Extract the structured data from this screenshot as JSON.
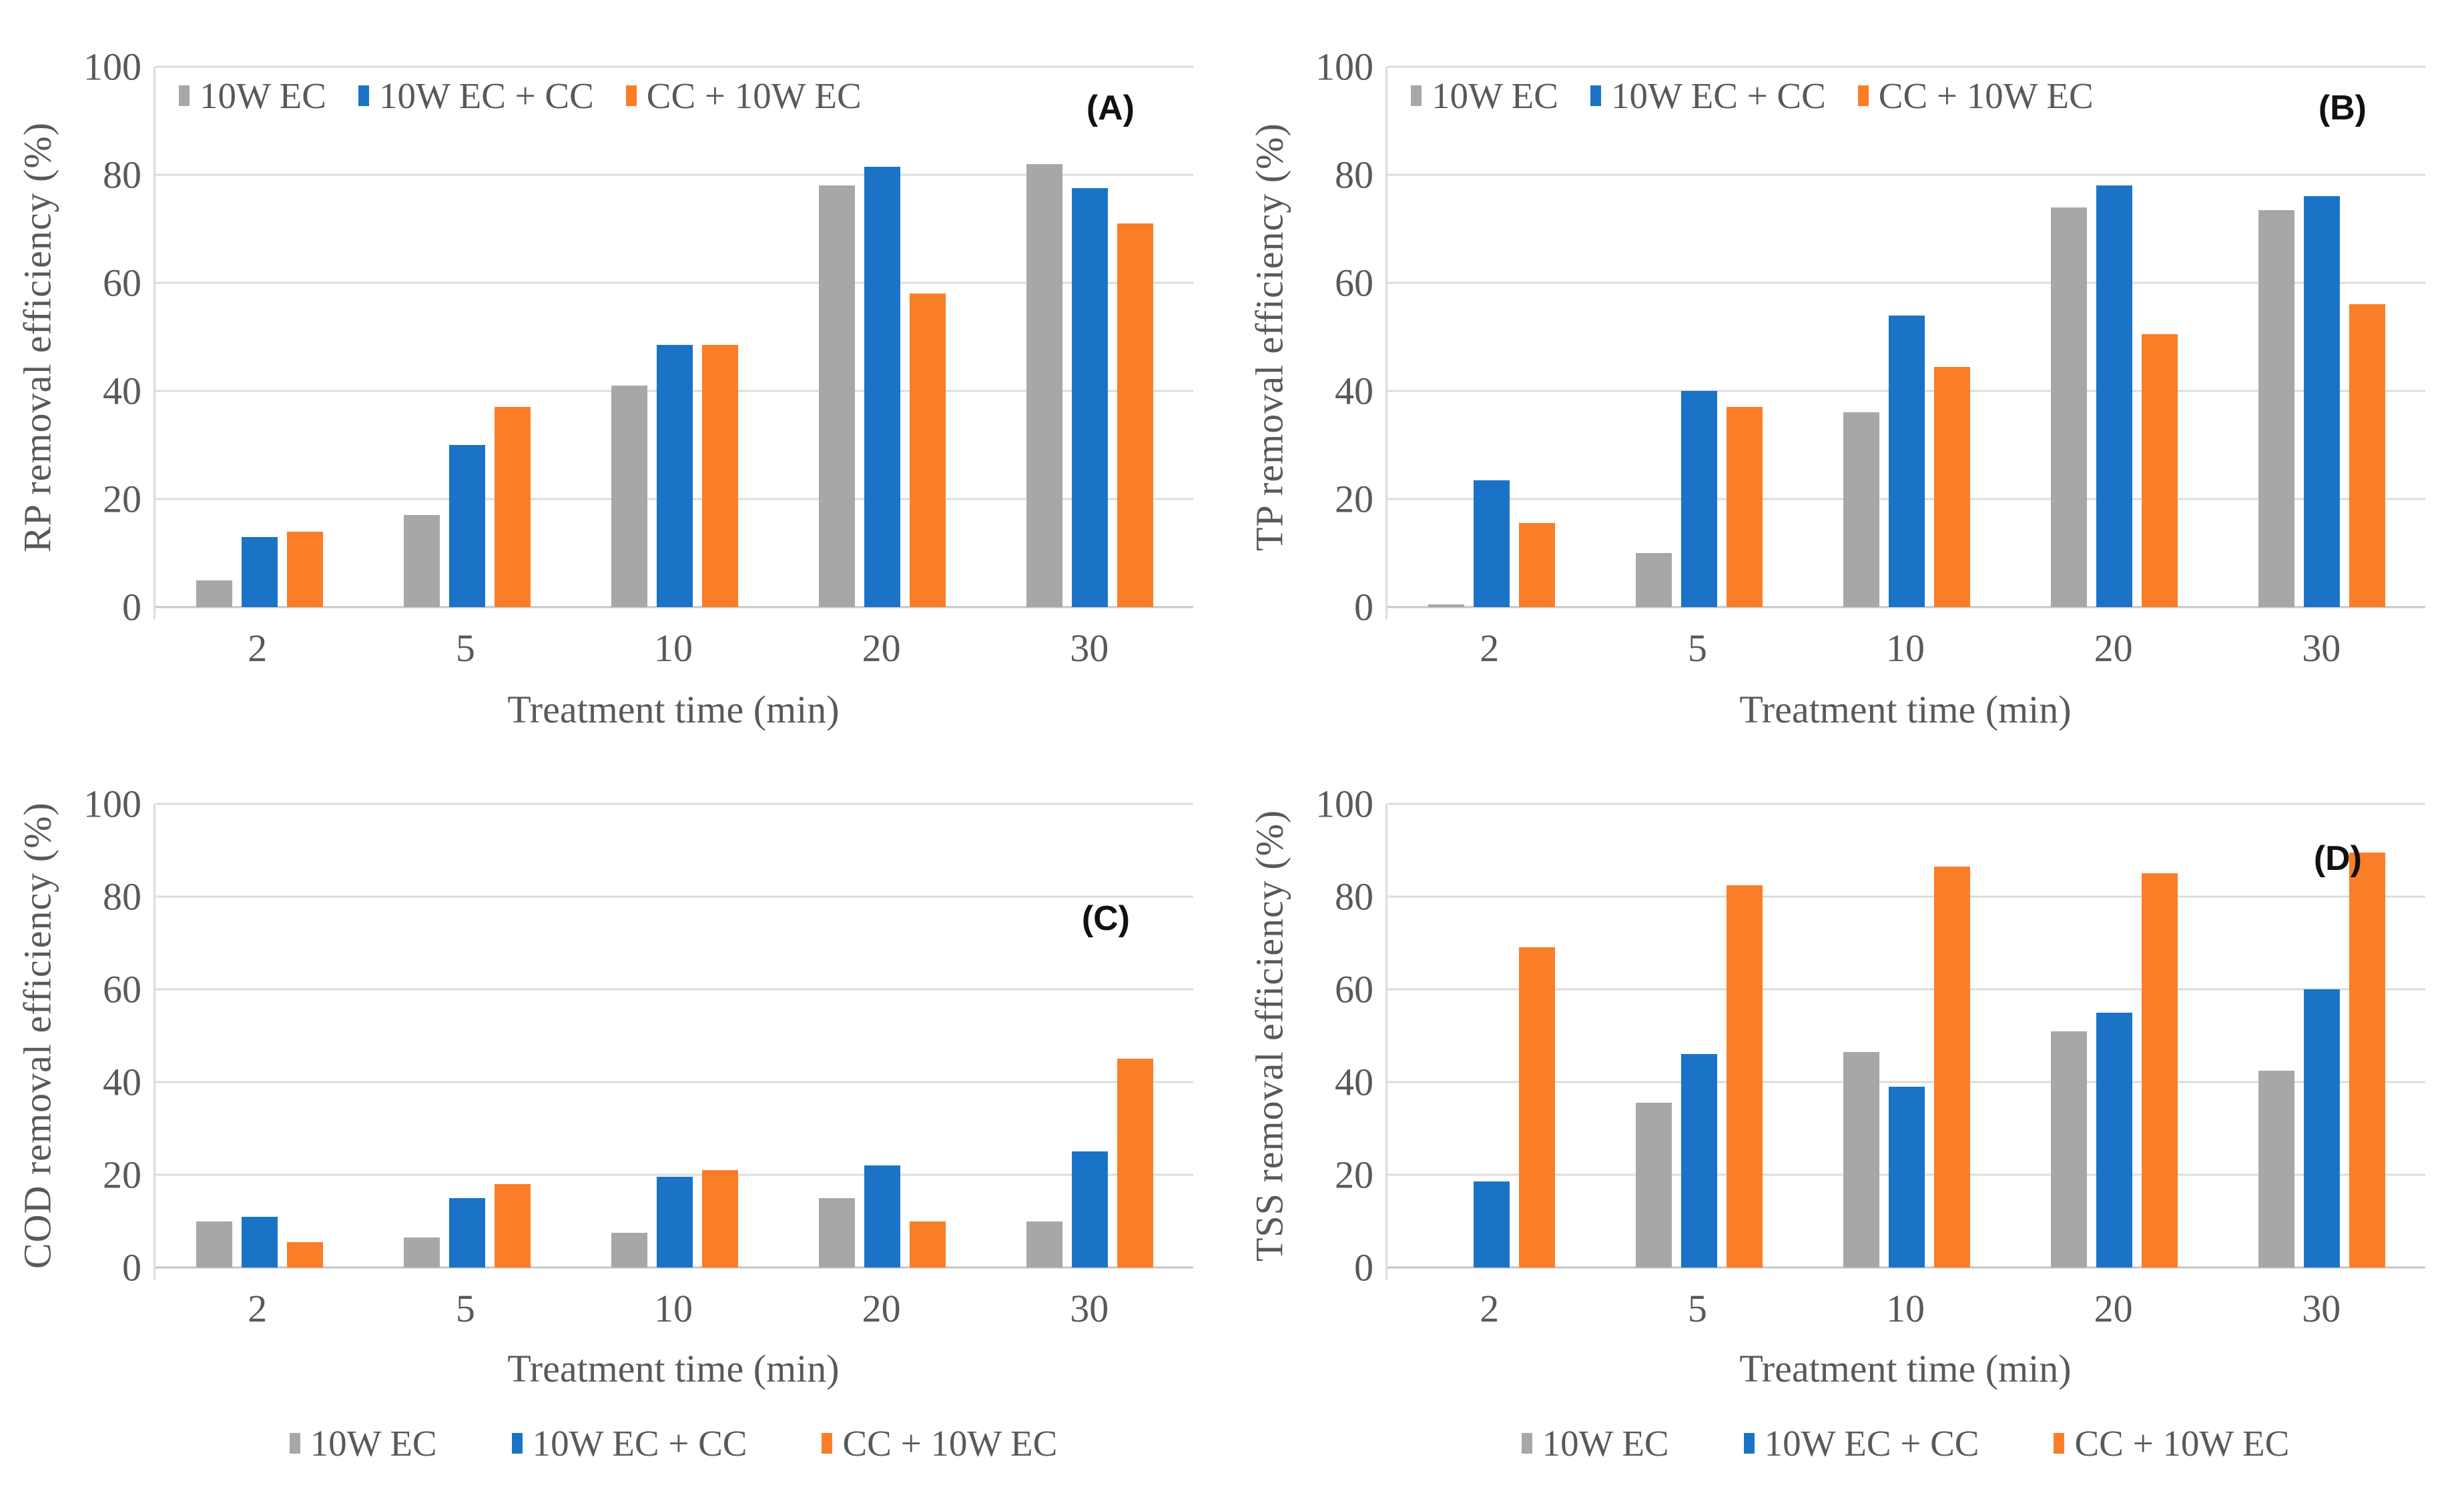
{
  "colors": {
    "gray": "#A7A7A7",
    "blue": "#1B73C7",
    "orange": "#FA7D27",
    "gridline": "#DCDCDC",
    "baseline": "#C6C6C6",
    "axis_text": "#595959",
    "panel_letter": "#111111"
  },
  "chart_data": [
    {
      "type": "bar",
      "panel": "(A)",
      "xlabel": "Treatment time (min)",
      "ylabel": "RP removal efficiency (%)",
      "ylim": [
        0,
        100
      ],
      "yticks": [
        0,
        20,
        40,
        60,
        80,
        100
      ],
      "grid": "horizontal",
      "legend_position": "top-inside",
      "categories": [
        "2",
        "5",
        "10",
        "20",
        "30"
      ],
      "series": [
        {
          "name": "10W EC",
          "color_key": "gray",
          "values": [
            5,
            17,
            41,
            78,
            82
          ]
        },
        {
          "name": "10W EC + CC",
          "color_key": "blue",
          "values": [
            13,
            30,
            48.5,
            81.5,
            77.5
          ]
        },
        {
          "name": "CC + 10W EC",
          "color_key": "orange",
          "values": [
            14,
            37,
            48.5,
            58,
            71
          ]
        }
      ]
    },
    {
      "type": "bar",
      "panel": "(B)",
      "xlabel": "Treatment time (min)",
      "ylabel": "TP removal efficiency (%)",
      "ylim": [
        0,
        100
      ],
      "yticks": [
        0,
        20,
        40,
        60,
        80,
        100
      ],
      "grid": "horizontal",
      "legend_position": "top-inside",
      "categories": [
        "2",
        "5",
        "10",
        "20",
        "30"
      ],
      "series": [
        {
          "name": "10W EC",
          "color_key": "gray",
          "values": [
            0.5,
            10,
            36,
            74,
            73.5
          ]
        },
        {
          "name": "10W EC + CC",
          "color_key": "blue",
          "values": [
            23.5,
            40,
            54,
            78,
            76
          ]
        },
        {
          "name": "CC + 10W EC",
          "color_key": "orange",
          "values": [
            15.5,
            37,
            44.5,
            50.5,
            56
          ]
        }
      ]
    },
    {
      "type": "bar",
      "panel": "(C)",
      "xlabel": "Treatment time (min)",
      "ylabel": "COD removal efficiency (%)",
      "ylim": [
        0,
        100
      ],
      "yticks": [
        0,
        20,
        40,
        60,
        80,
        100
      ],
      "grid": "horizontal",
      "legend_position": "bottom",
      "categories": [
        "2",
        "5",
        "10",
        "20",
        "30"
      ],
      "series": [
        {
          "name": "10W EC",
          "color_key": "gray",
          "values": [
            10,
            6.5,
            7.5,
            15,
            10
          ]
        },
        {
          "name": "10W EC + CC",
          "color_key": "blue",
          "values": [
            11,
            15,
            19.5,
            22,
            25
          ]
        },
        {
          "name": "CC + 10W EC",
          "color_key": "orange",
          "values": [
            5.5,
            18,
            21,
            10,
            45
          ]
        }
      ]
    },
    {
      "type": "bar",
      "panel": "(D)",
      "xlabel": "Treatment time (min)",
      "ylabel": "TSS removal efficiency (%)",
      "ylim": [
        0,
        100
      ],
      "yticks": [
        0,
        20,
        40,
        60,
        80,
        100
      ],
      "grid": "horizontal",
      "legend_position": "bottom",
      "categories": [
        "2",
        "5",
        "10",
        "20",
        "30"
      ],
      "series": [
        {
          "name": "10W EC",
          "color_key": "gray",
          "values": [
            0,
            35.5,
            46.5,
            51,
            42.5
          ]
        },
        {
          "name": "10W EC + CC",
          "color_key": "blue",
          "values": [
            18.5,
            46,
            39,
            55,
            60
          ]
        },
        {
          "name": "CC + 10W EC",
          "color_key": "orange",
          "values": [
            69,
            82.5,
            86.5,
            85,
            89.5
          ]
        }
      ]
    }
  ]
}
